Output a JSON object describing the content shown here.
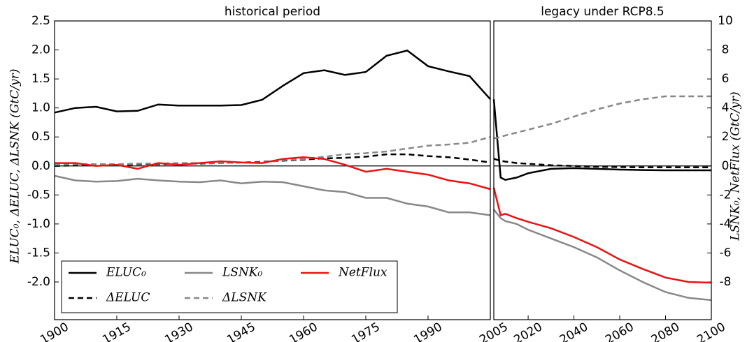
{
  "chart_data": [
    {
      "type": "line",
      "title": "historical period",
      "ylabel": "ELUC₀, ΔELUC, ΔLSNK (GtC/yr)",
      "x": [
        1900,
        1905,
        1910,
        1915,
        1920,
        1925,
        1930,
        1935,
        1940,
        1945,
        1950,
        1955,
        1960,
        1965,
        1970,
        1975,
        1980,
        1985,
        1990,
        1995,
        2000,
        2005
      ],
      "xlim": [
        1900,
        2005
      ],
      "xticks": [
        1900,
        1915,
        1930,
        1945,
        1960,
        1975,
        1990
      ],
      "ylim": [
        -2.65,
        2.5
      ],
      "yticks": [
        2.5,
        {
          "value": 2,
          "label": "2.0"
        },
        1.5,
        {
          "value": 1,
          "label": "1.0"
        },
        0.5,
        {
          "value": 0,
          "label": "0.0"
        },
        -0.5,
        {
          "value": -1,
          "label": "-1.0"
        },
        -1.5,
        {
          "value": -2,
          "label": "-2.0"
        }
      ],
      "hline": 0,
      "legend": "lower left",
      "series": [
        {
          "name": "ELUC₀",
          "color": "#000000",
          "dash": false,
          "values": [
            0.92,
            1.0,
            1.02,
            0.94,
            0.95,
            1.06,
            1.04,
            1.04,
            1.04,
            1.05,
            1.14,
            1.38,
            1.6,
            1.65,
            1.57,
            1.62,
            1.9,
            1.99,
            1.72,
            1.63,
            1.55,
            1.15
          ]
        },
        {
          "name": "ΔELUC",
          "color": "#000000",
          "dash": true,
          "values": [
            0,
            0.01,
            0.02,
            0.02,
            0.03,
            0.03,
            0.04,
            0.04,
            0.05,
            0.06,
            0.07,
            0.09,
            0.11,
            0.13,
            0.14,
            0.16,
            0.2,
            0.2,
            0.17,
            0.15,
            0.11,
            0.06
          ]
        },
        {
          "name": "LSNK₀",
          "color": "#888888",
          "dash": false,
          "values": [
            -0.17,
            -0.25,
            -0.27,
            -0.26,
            -0.22,
            -0.25,
            -0.27,
            -0.28,
            -0.25,
            -0.3,
            -0.27,
            -0.28,
            -0.35,
            -0.42,
            -0.45,
            -0.55,
            -0.55,
            -0.65,
            -0.7,
            -0.8,
            -0.8,
            -0.85
          ]
        },
        {
          "name": "ΔLSNK",
          "color": "#888888",
          "dash": true,
          "values": [
            0.02,
            0.03,
            0.03,
            0.03,
            0.04,
            0.04,
            0.05,
            0.05,
            0.05,
            0.06,
            0.06,
            0.1,
            0.12,
            0.16,
            0.2,
            0.22,
            0.25,
            0.3,
            0.35,
            0.37,
            0.4,
            0.5
          ]
        },
        {
          "name": "NetFlux",
          "color": "#ee1111",
          "dash": false,
          "values": [
            0.05,
            0.05,
            0.0,
            0.02,
            -0.05,
            0.05,
            0.02,
            0.05,
            0.08,
            0.06,
            0.05,
            0.12,
            0.15,
            0.12,
            0.02,
            -0.1,
            -0.05,
            -0.1,
            -0.15,
            -0.25,
            -0.3,
            -0.4
          ]
        }
      ]
    },
    {
      "type": "line",
      "title": "legacy under RCP8.5",
      "y2label": "LSNK₀, NetFlux (GtC/yr)",
      "x": [
        2005,
        2008,
        2010,
        2015,
        2020,
        2030,
        2040,
        2050,
        2060,
        2070,
        2080,
        2090,
        2100
      ],
      "xlim": [
        2005,
        2100
      ],
      "xticks": [
        2005,
        2020,
        2040,
        2060,
        2080,
        2100
      ],
      "y2lim": [
        -10.6,
        10
      ],
      "y2ticks": [
        10,
        8,
        6,
        4,
        2,
        0,
        -2,
        -4,
        -6,
        -8
      ],
      "hline": 0,
      "series": [
        {
          "color": "#000000",
          "dash": false,
          "axis": "y2",
          "values": [
            4.6,
            -0.8,
            -0.96,
            -0.8,
            -0.5,
            -0.2,
            -0.15,
            -0.2,
            -0.25,
            -0.28,
            -0.3,
            -0.3,
            -0.3
          ]
        },
        {
          "color": "#000000",
          "dash": true,
          "axis": "y2",
          "values": [
            0.5,
            0.35,
            0.3,
            0.2,
            0.15,
            0.05,
            0,
            -0.05,
            -0.08,
            -0.1,
            -0.1,
            -0.1,
            -0.1
          ]
        },
        {
          "color": "#888888",
          "dash": false,
          "axis": "y2",
          "values": [
            -3.0,
            -3.6,
            -3.8,
            -4.0,
            -4.4,
            -5.0,
            -5.6,
            -6.3,
            -7.2,
            -8.0,
            -8.7,
            -9.1,
            -9.25
          ]
        },
        {
          "color": "#888888",
          "dash": true,
          "axis": "y2",
          "values": [
            1.9,
            2.0,
            2.1,
            2.3,
            2.5,
            2.9,
            3.4,
            3.9,
            4.3,
            4.6,
            4.8,
            4.8,
            4.8
          ]
        },
        {
          "color": "#ee1111",
          "dash": false,
          "axis": "y2",
          "values": [
            -1.5,
            -3.4,
            -3.3,
            -3.6,
            -3.85,
            -4.3,
            -4.9,
            -5.6,
            -6.45,
            -7.1,
            -7.7,
            -8.0,
            -8.05
          ]
        }
      ]
    }
  ]
}
